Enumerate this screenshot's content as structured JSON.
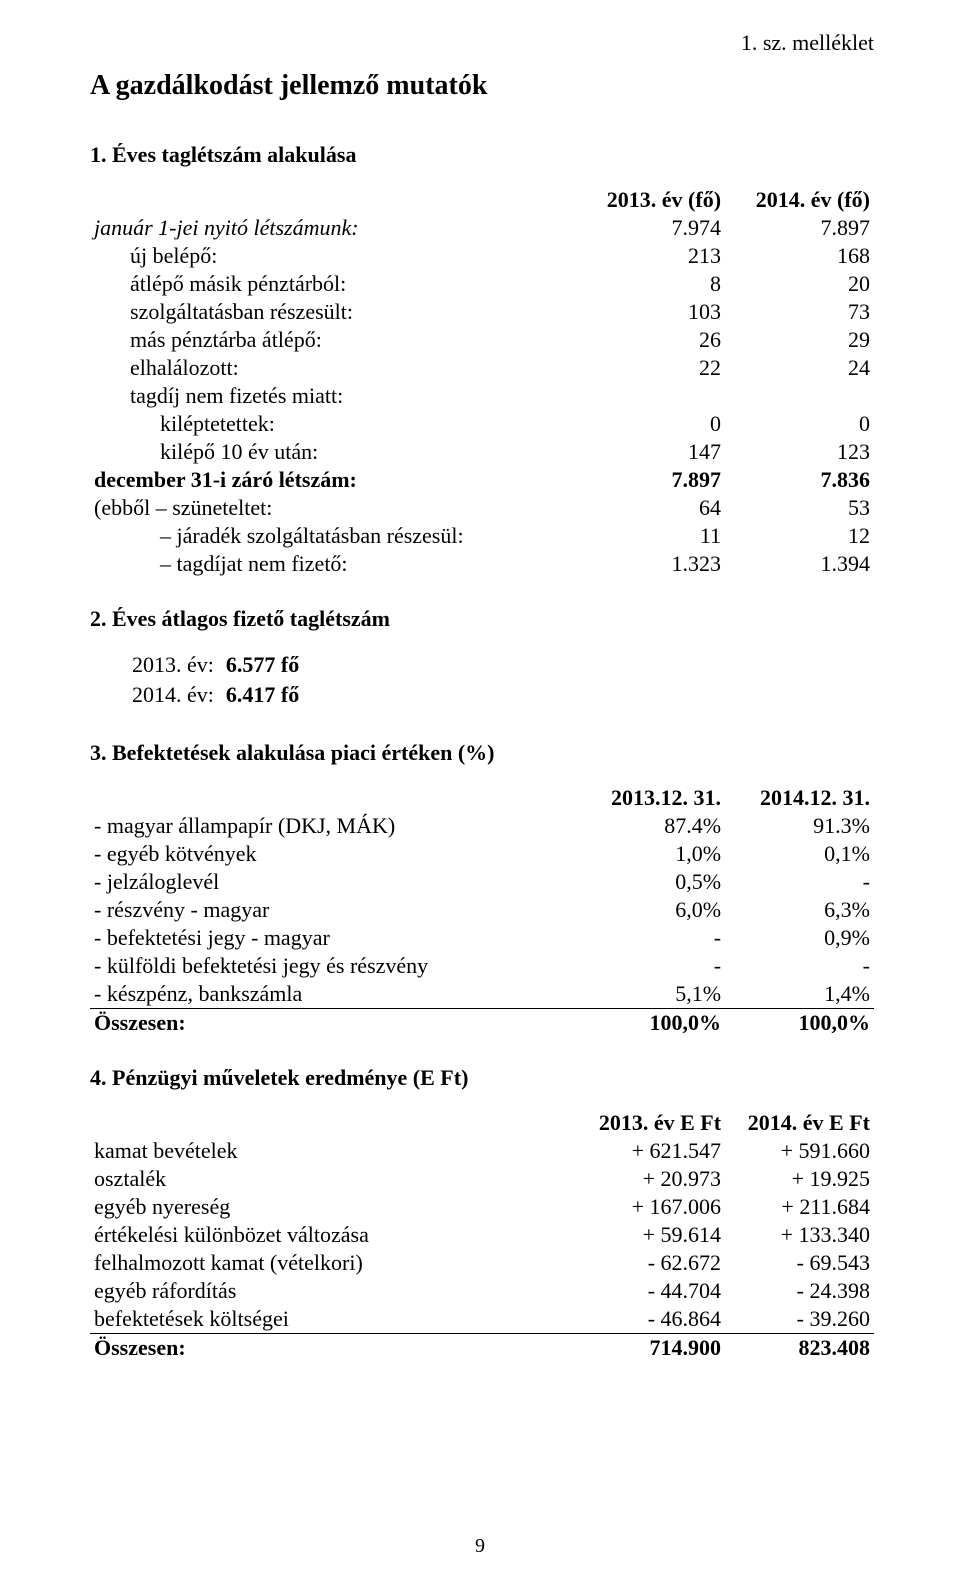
{
  "document": {
    "annex_label": "1. sz. melléklet",
    "title": "A gazdálkodást jellemző mutatók",
    "page_number": "9",
    "font_family": "Times New Roman",
    "text_color": "#000000",
    "background_color": "#ffffff"
  },
  "section1": {
    "heading": "1. Éves taglétszám alakulása",
    "col_a": "2013. év (fő)",
    "col_b": "2014. év (fő)",
    "rows": [
      {
        "label": "január 1-jei nyitó létszámunk:",
        "a": "7.974",
        "b": "7.897",
        "italic": true,
        "indent": 0
      },
      {
        "label": "új belépő:",
        "a": "213",
        "b": "168",
        "indent": 1
      },
      {
        "label": "átlépő másik pénztárból:",
        "a": "8",
        "b": "20",
        "indent": 1
      },
      {
        "label": "szolgáltatásban részesült:",
        "a": "103",
        "b": "73",
        "indent": 1
      },
      {
        "label": "más pénztárba átlépő:",
        "a": "26",
        "b": "29",
        "indent": 1
      },
      {
        "label": "elhalálozott:",
        "a": "22",
        "b": "24",
        "indent": 1
      },
      {
        "label": "tagdíj nem fizetés miatt:",
        "a": "",
        "b": "",
        "indent": 1
      },
      {
        "label": "kiléptetettek:",
        "a": "0",
        "b": "0",
        "indent": 2
      },
      {
        "label": "kilépő 10 év után:",
        "a": "147",
        "b": "123",
        "indent": 2
      },
      {
        "label": "december 31-i záró létszám:",
        "a": "7.897",
        "b": "7.836",
        "bold": true,
        "indent": 0
      },
      {
        "label": "(ebből  –  szüneteltet:",
        "a": "64",
        "b": "53",
        "indent": 0
      },
      {
        "label": "járadék szolgáltatásban részesül:",
        "a": "11",
        "b": "12",
        "dash": true,
        "indent": 2
      },
      {
        "label": "tagdíjat nem fizető:",
        "a": "1.323",
        "b": "1.394",
        "dash": true,
        "indent": 2
      }
    ]
  },
  "section2": {
    "heading": "2. Éves átlagos fizető taglétszám",
    "rows": [
      {
        "label": "2013. év:",
        "value": "6.577 fő"
      },
      {
        "label": "2014. év:",
        "value": "6.417 fő"
      }
    ]
  },
  "section3": {
    "heading": "3. Befektetések alakulása piaci értéken (%)",
    "col_a": "2013.12. 31.",
    "col_b": "2014.12. 31.",
    "rows": [
      {
        "label": "- magyar állampapír (DKJ, MÁK)",
        "a": "87.4%",
        "b": "91.3%"
      },
      {
        "label": "- egyéb kötvények",
        "a": "1,0%",
        "b": "0,1%"
      },
      {
        "label": "- jelzáloglevél",
        "a": "0,5%",
        "b": "-"
      },
      {
        "label": "- részvény - magyar",
        "a": "6,0%",
        "b": "6,3%"
      },
      {
        "label": "- befektetési jegy  - magyar",
        "a": "-",
        "b": "0,9%"
      },
      {
        "label": "- külföldi befektetési jegy és részvény",
        "a": "-",
        "b": "-"
      },
      {
        "label": "- készpénz, bankszámla",
        "a": "5,1%",
        "b": "1,4%"
      }
    ],
    "total": {
      "label": "Összesen:",
      "a": "100,0%",
      "b": "100,0%"
    }
  },
  "section4": {
    "heading": "4. Pénzügyi műveletek eredménye (E Ft)",
    "col_a": "2013. év E Ft",
    "col_b": "2014. év E Ft",
    "rows": [
      {
        "label": "kamat bevételek",
        "a": "+ 621.547",
        "b": "+ 591.660"
      },
      {
        "label": "osztalék",
        "a": "+ 20.973",
        "b": "+ 19.925"
      },
      {
        "label": "egyéb nyereség",
        "a": "+ 167.006",
        "b": "+ 211.684"
      },
      {
        "label": "értékelési különbözet változása",
        "a": "+ 59.614",
        "b": "+ 133.340"
      },
      {
        "label": "felhalmozott kamat (vételkori)",
        "a": "- 62.672",
        "b": "- 69.543"
      },
      {
        "label": "egyéb ráfordítás",
        "a": "- 44.704",
        "b": "- 24.398"
      },
      {
        "label": "befektetések költségei",
        "a": "- 46.864",
        "b": "- 39.260"
      }
    ],
    "total": {
      "label": "Összesen:",
      "a": "714.900",
      "b": "823.408"
    }
  }
}
